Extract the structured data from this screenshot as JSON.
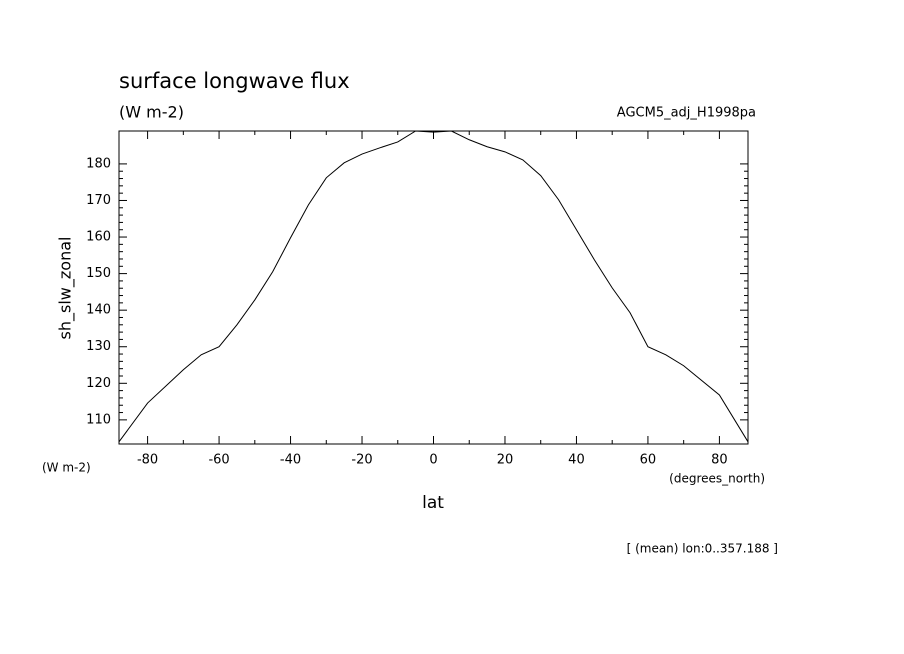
{
  "chart_data": {
    "type": "line",
    "title": "surface longwave flux",
    "subtitle": "(W m-2)",
    "dataset": "AGCM5_adj_H1998pa",
    "ylabel": "sh_slw_zonal",
    "xlabel": "lat",
    "y_units": "(W m-2)",
    "x_units": "(degrees_north)",
    "footnote": "[ (mean) lon:0..357.188 ]",
    "x": [
      -88,
      -80,
      -70,
      -65,
      -60,
      -55,
      -50,
      -45,
      -40,
      -35,
      -30,
      -25,
      -20,
      -15,
      -10,
      -5,
      0,
      5,
      10,
      15,
      20,
      25,
      30,
      35,
      40,
      45,
      50,
      55,
      60,
      65,
      70,
      80,
      88
    ],
    "series": [
      {
        "name": "sh_slw_zonal",
        "color": "#000000",
        "values": [
          104,
          114.6,
          123.7,
          127.8,
          130,
          136,
          142.8,
          150.5,
          159.8,
          168.8,
          176.2,
          180.3,
          182.7,
          184.4,
          186,
          189,
          188.7,
          189,
          186.6,
          184.7,
          183.3,
          181.1,
          176.8,
          170.2,
          162,
          153.8,
          146.1,
          139.3,
          130,
          127.8,
          124.8,
          116.8,
          104
        ]
      }
    ],
    "xlim": [
      -88,
      88
    ],
    "ylim": [
      103.4,
      189
    ],
    "xticks": [
      -80,
      -60,
      -40,
      -20,
      0,
      20,
      40,
      60,
      80
    ],
    "yticks": [
      110,
      120,
      130,
      140,
      150,
      160,
      170,
      180
    ]
  }
}
